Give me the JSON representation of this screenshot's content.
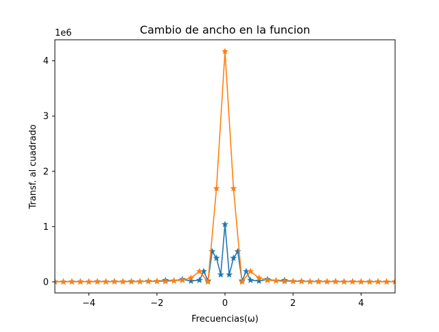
{
  "chart_data": {
    "type": "line",
    "title": "Cambio de ancho en la funcion",
    "xlabel": "Frecuencias(ω)",
    "ylabel": "Transf. al cuadrado",
    "y_offset_label": "1e6",
    "xlim": [
      -5,
      5
    ],
    "ylim": [
      -0.2,
      4.38
    ],
    "x_ticks": [
      -4,
      -2,
      0,
      2,
      4
    ],
    "x_tick_labels": [
      "−4",
      "−2",
      "0",
      "2",
      "4"
    ],
    "y_ticks": [
      0,
      1,
      2,
      3,
      4
    ],
    "y_tick_labels": [
      "0",
      "1",
      "2",
      "3",
      "4"
    ],
    "grid": false,
    "marker": "star",
    "series": [
      {
        "color": "#1f77b4",
        "x": [
          -5.0,
          -4.75,
          -4.5,
          -4.25,
          -4.0,
          -3.75,
          -3.5,
          -3.25,
          -3.0,
          -2.75,
          -2.5,
          -2.25,
          -2.0,
          -1.75,
          -1.5,
          -1.25,
          -1.0,
          -0.75,
          -0.625,
          -0.5,
          -0.375,
          -0.25,
          -0.125,
          0.0,
          0.125,
          0.25,
          0.375,
          0.5,
          0.625,
          0.75,
          1.0,
          1.25,
          1.5,
          1.75,
          2.0,
          2.25,
          2.5,
          2.75,
          3.0,
          3.25,
          3.5,
          3.75,
          4.0,
          4.25,
          4.5,
          4.75,
          5.0
        ],
        "values": [
          0.003,
          0.002,
          0.004,
          0.003,
          0.002,
          0.005,
          0.003,
          0.006,
          0.004,
          0.008,
          0.005,
          0.012,
          0.01,
          0.028,
          0.02,
          0.045,
          0.015,
          0.03,
          0.19,
          0.02,
          0.55,
          0.43,
          0.13,
          1.04,
          0.13,
          0.43,
          0.55,
          0.02,
          0.19,
          0.03,
          0.015,
          0.045,
          0.02,
          0.028,
          0.01,
          0.012,
          0.005,
          0.008,
          0.004,
          0.006,
          0.003,
          0.005,
          0.002,
          0.003,
          0.004,
          0.002,
          0.003
        ]
      },
      {
        "color": "#ff7f0e",
        "x": [
          -5.0,
          -4.75,
          -4.5,
          -4.25,
          -4.0,
          -3.75,
          -3.5,
          -3.25,
          -3.0,
          -2.75,
          -2.5,
          -2.25,
          -2.0,
          -1.75,
          -1.5,
          -1.25,
          -1.0,
          -0.75,
          -0.5,
          -0.25,
          0.0,
          0.25,
          0.5,
          0.75,
          1.0,
          1.25,
          1.5,
          1.75,
          2.0,
          2.25,
          2.5,
          2.75,
          3.0,
          3.25,
          3.5,
          3.75,
          4.0,
          4.25,
          4.5,
          4.75,
          5.0
        ],
        "values": [
          0.002,
          0.001,
          0.002,
          0.001,
          0.002,
          0.003,
          0.002,
          0.003,
          0.004,
          0.003,
          0.005,
          0.007,
          0.012,
          0.008,
          0.02,
          0.03,
          0.07,
          0.19,
          0.0,
          1.69,
          4.17,
          1.69,
          0.0,
          0.19,
          0.07,
          0.03,
          0.02,
          0.008,
          0.012,
          0.007,
          0.005,
          0.003,
          0.004,
          0.003,
          0.002,
          0.003,
          0.002,
          0.001,
          0.002,
          0.001,
          0.002
        ]
      }
    ]
  }
}
